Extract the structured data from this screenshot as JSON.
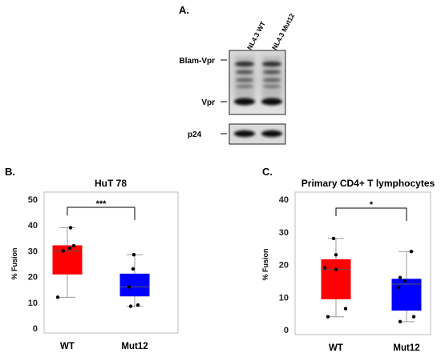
{
  "panel_a": {
    "letter": "A.",
    "lanes": [
      "NL4.3 WT",
      "NL4.3 Mut12"
    ],
    "bands": {
      "blam_vpr": "Blam-Vpr",
      "vpr": "Vpr",
      "p24": "p24"
    }
  },
  "chart_data": [
    {
      "type": "box",
      "panel": "B.",
      "title": "HuT 78",
      "xlabel": "",
      "ylabel": "% Fusion",
      "ylim": [
        0,
        50
      ],
      "yticks": [
        0,
        10,
        20,
        30,
        40,
        50
      ],
      "categories": [
        "WT",
        "Mut12"
      ],
      "series": [
        {
          "color": "#ff0000",
          "q1": 21,
          "median": 30,
          "q3": 32,
          "whisker_low": 12,
          "whisker_high": 39,
          "points": [
            12,
            30,
            31,
            32,
            39
          ]
        },
        {
          "color": "#0000ff",
          "q1": 12.5,
          "median": 16,
          "q3": 21,
          "whisker_low": 8.5,
          "whisker_high": 28.5,
          "points": [
            8.5,
            9,
            16,
            23,
            28.5
          ]
        }
      ],
      "significance": "***"
    },
    {
      "type": "box",
      "panel": "C.",
      "title": "Primary CD4+ T lymphocytes",
      "xlabel": "",
      "ylabel": "% Fusion",
      "ylim": [
        0,
        40
      ],
      "yticks": [
        0,
        10,
        20,
        30,
        40
      ],
      "categories": [
        "WT",
        "Mut12"
      ],
      "series": [
        {
          "color": "#ff0000",
          "q1": 9.5,
          "median": 18.5,
          "q3": 21.5,
          "whisker_low": 4,
          "whisker_high": 28,
          "points": [
            4,
            6.5,
            18.5,
            19,
            23,
            28
          ]
        },
        {
          "color": "#0000ff",
          "q1": 6,
          "median": 14,
          "q3": 15.5,
          "whisker_low": 2.5,
          "whisker_high": 24,
          "points": [
            2.5,
            4,
            13,
            15,
            16,
            24
          ]
        }
      ],
      "significance": "*"
    }
  ]
}
